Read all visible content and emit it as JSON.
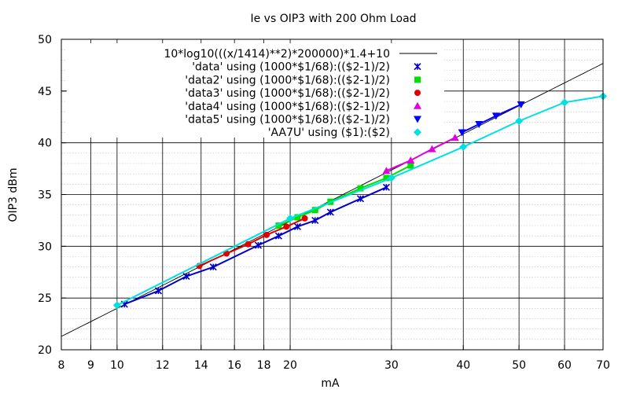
{
  "chart_data": {
    "type": "line",
    "title": "Ie vs OIP3 with 200 Ohm Load",
    "xlabel": "mA",
    "ylabel": "OIP3 dBm",
    "xscale": "log",
    "xlim": [
      8,
      70
    ],
    "ylim": [
      20,
      50
    ],
    "xticks": [
      8,
      9,
      10,
      12,
      14,
      16,
      18,
      20,
      30,
      40,
      50,
      60,
      70
    ],
    "yticks": [
      20,
      25,
      30,
      35,
      40,
      45,
      50
    ],
    "grid": true,
    "legend_position": "top-right",
    "legend": [
      {
        "label": "10*log10(((x/1414)**2)*200000)*1.4+10",
        "color": "#000000",
        "marker": "line"
      },
      {
        "label": "'data' using (1000*$1/68):(($2-1)/2)",
        "color": "#0000c8",
        "marker": "x"
      },
      {
        "label": "'data2' using (1000*$1/68):(($2-1)/2)",
        "color": "#00e000",
        "marker": "square"
      },
      {
        "label": "'data3' using (1000*$1/68):(($2-1)/2)",
        "color": "#e00000",
        "marker": "circle"
      },
      {
        "label": "'data4' using (1000*$1/68):(($2-1)/2)",
        "color": "#e000e0",
        "marker": "triangle-up"
      },
      {
        "label": "'data5' using (1000*$1/68):(($2-1)/2)",
        "color": "#0000ff",
        "marker": "triangle-down"
      },
      {
        "label": "'AA7U' using ($1):($2)",
        "color": "#00e0e0",
        "marker": "diamond"
      }
    ],
    "series": [
      {
        "color": "#0000c8",
        "marker": "x",
        "x": [
          10.3,
          11.8,
          13.2,
          14.7,
          17.6,
          19.1,
          20.6,
          22.1,
          23.5,
          26.5,
          29.4
        ],
        "y": [
          24.4,
          25.7,
          27.1,
          28.0,
          30.1,
          31.0,
          31.9,
          32.5,
          33.3,
          34.6,
          35.7
        ]
      },
      {
        "color": "#00e000",
        "marker": "square",
        "x": [
          19.1,
          20.6,
          22.1,
          23.5,
          26.5,
          29.4,
          32.4
        ],
        "y": [
          32.0,
          32.8,
          33.5,
          34.3,
          35.6,
          36.6,
          37.8
        ]
      },
      {
        "color": "#e00000",
        "marker": "circle",
        "x": [
          13.9,
          15.5,
          16.9,
          18.2,
          19.7,
          21.2
        ],
        "y": [
          28.1,
          29.3,
          30.2,
          31.1,
          31.9,
          32.7
        ]
      },
      {
        "color": "#e000e0",
        "marker": "triangle-up",
        "x": [
          29.4,
          32.4,
          35.3,
          38.7
        ],
        "y": [
          37.3,
          38.3,
          39.4,
          40.5
        ]
      },
      {
        "color": "#0000ff",
        "marker": "triangle-down",
        "x": [
          39.8,
          42.6,
          45.6,
          50.4
        ],
        "y": [
          41.0,
          41.8,
          42.6,
          43.7
        ]
      },
      {
        "color": "#00e0e0",
        "marker": "diamond",
        "x": [
          10,
          20,
          30,
          40,
          50,
          60,
          70
        ],
        "y": [
          24.3,
          32.7,
          36.6,
          39.6,
          42.1,
          43.9,
          44.5
        ]
      }
    ]
  }
}
